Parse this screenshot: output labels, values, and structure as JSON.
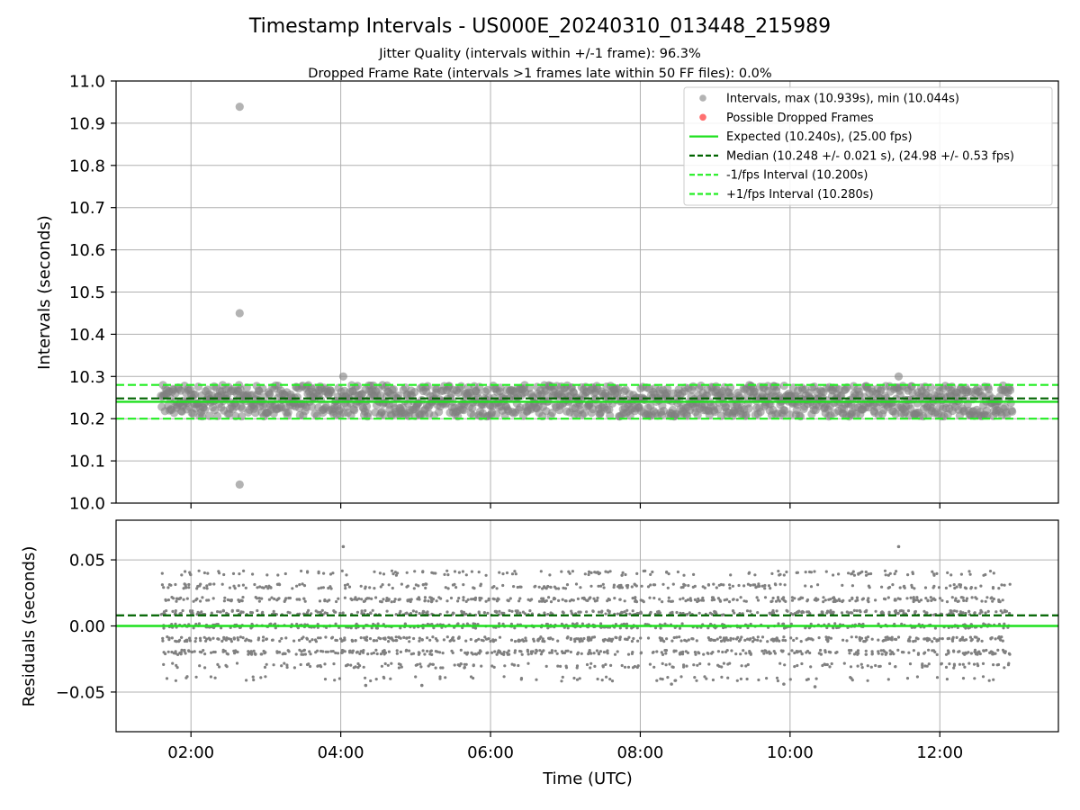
{
  "figure": {
    "title": "Timestamp Intervals - US000E_20240310_013448_215989",
    "subtitle_1": "Jitter Quality (intervals within +/-1 frame): 96.3%",
    "subtitle_2": "Dropped Frame Rate (intervals >1 frames late within 50 FF files): 0.0%",
    "xlabel": "Time (UTC)"
  },
  "colors": {
    "intervals_points": "#808080",
    "dropped_points": "#ff6060",
    "expected_line": "#1ee11e",
    "median_line": "#006400",
    "fps_interval_lines": "#22ee22",
    "grid": "#b0b0b0"
  },
  "chart_data": [
    {
      "type": "scatter",
      "panel": "top",
      "ylabel": "Intervals (seconds)",
      "ylim": [
        10.0,
        11.0
      ],
      "yticks": [
        "10.0",
        "10.1",
        "10.2",
        "10.3",
        "10.4",
        "10.5",
        "10.6",
        "10.7",
        "10.8",
        "10.9",
        "11.0"
      ],
      "ytick_values": [
        10.0,
        10.1,
        10.2,
        10.3,
        10.4,
        10.5,
        10.6,
        10.7,
        10.8,
        10.9,
        11.0
      ],
      "xlim": [
        "01:00",
        "13:35"
      ],
      "x_range": [
        "01:36",
        "12:58"
      ],
      "grid": true,
      "legend_placement": "upper-right",
      "series": [
        {
          "name": "Intervals, max (10.939s), min (10.044s)",
          "kind": "scatter",
          "band": [
            10.2,
            10.28
          ],
          "outliers": [
            {
              "x": "02:39",
              "y": 10.939
            },
            {
              "x": "02:39",
              "y": 10.45
            },
            {
              "x": "02:39",
              "y": 10.044
            },
            {
              "x": "04:02",
              "y": 10.3
            },
            {
              "x": "11:27",
              "y": 10.3
            }
          ]
        },
        {
          "name": "Possible Dropped Frames",
          "kind": "scatter",
          "points": []
        }
      ],
      "lines": [
        {
          "name": "Expected (10.240s), (25.00 fps)",
          "y": 10.24,
          "style": "solid"
        },
        {
          "name": "Median (10.248 +/- 0.021 s), (24.98 +/- 0.53 fps)",
          "y": 10.248,
          "style": "dashed"
        },
        {
          "name": "-1/fps Interval (10.200s)",
          "y": 10.2,
          "style": "dashed"
        },
        {
          "name": "+1/fps Interval (10.280s)",
          "y": 10.28,
          "style": "dashed"
        }
      ]
    },
    {
      "type": "scatter",
      "panel": "bottom",
      "ylabel": "Residuals (seconds)",
      "ylim": [
        -0.08,
        0.08
      ],
      "yticks": [
        "0.05",
        "0.00",
        "−0.05"
      ],
      "ytick_values": [
        0.05,
        0.0,
        -0.05
      ],
      "xlabel": "Time (UTC)",
      "xticks": [
        "02:00",
        "04:00",
        "06:00",
        "08:00",
        "10:00",
        "12:00"
      ],
      "xlim": [
        "01:00",
        "13:35"
      ],
      "x_range": [
        "01:36",
        "12:58"
      ],
      "grid": true,
      "levels": [
        -0.04,
        -0.03,
        -0.02,
        -0.01,
        0.0,
        0.01,
        0.02,
        0.03,
        0.04
      ],
      "outliers": [
        {
          "x": "04:02",
          "y": 0.06
        },
        {
          "x": "11:27",
          "y": 0.06
        },
        {
          "x": "04:20",
          "y": -0.045
        },
        {
          "x": "05:05",
          "y": -0.045
        },
        {
          "x": "10:20",
          "y": -0.046
        },
        {
          "x": "08:25",
          "y": -0.044
        },
        {
          "x": "09:55",
          "y": -0.044
        }
      ],
      "lines": [
        {
          "y": 0.0,
          "style": "solid"
        },
        {
          "y": 0.008,
          "style": "dashed"
        }
      ]
    }
  ]
}
